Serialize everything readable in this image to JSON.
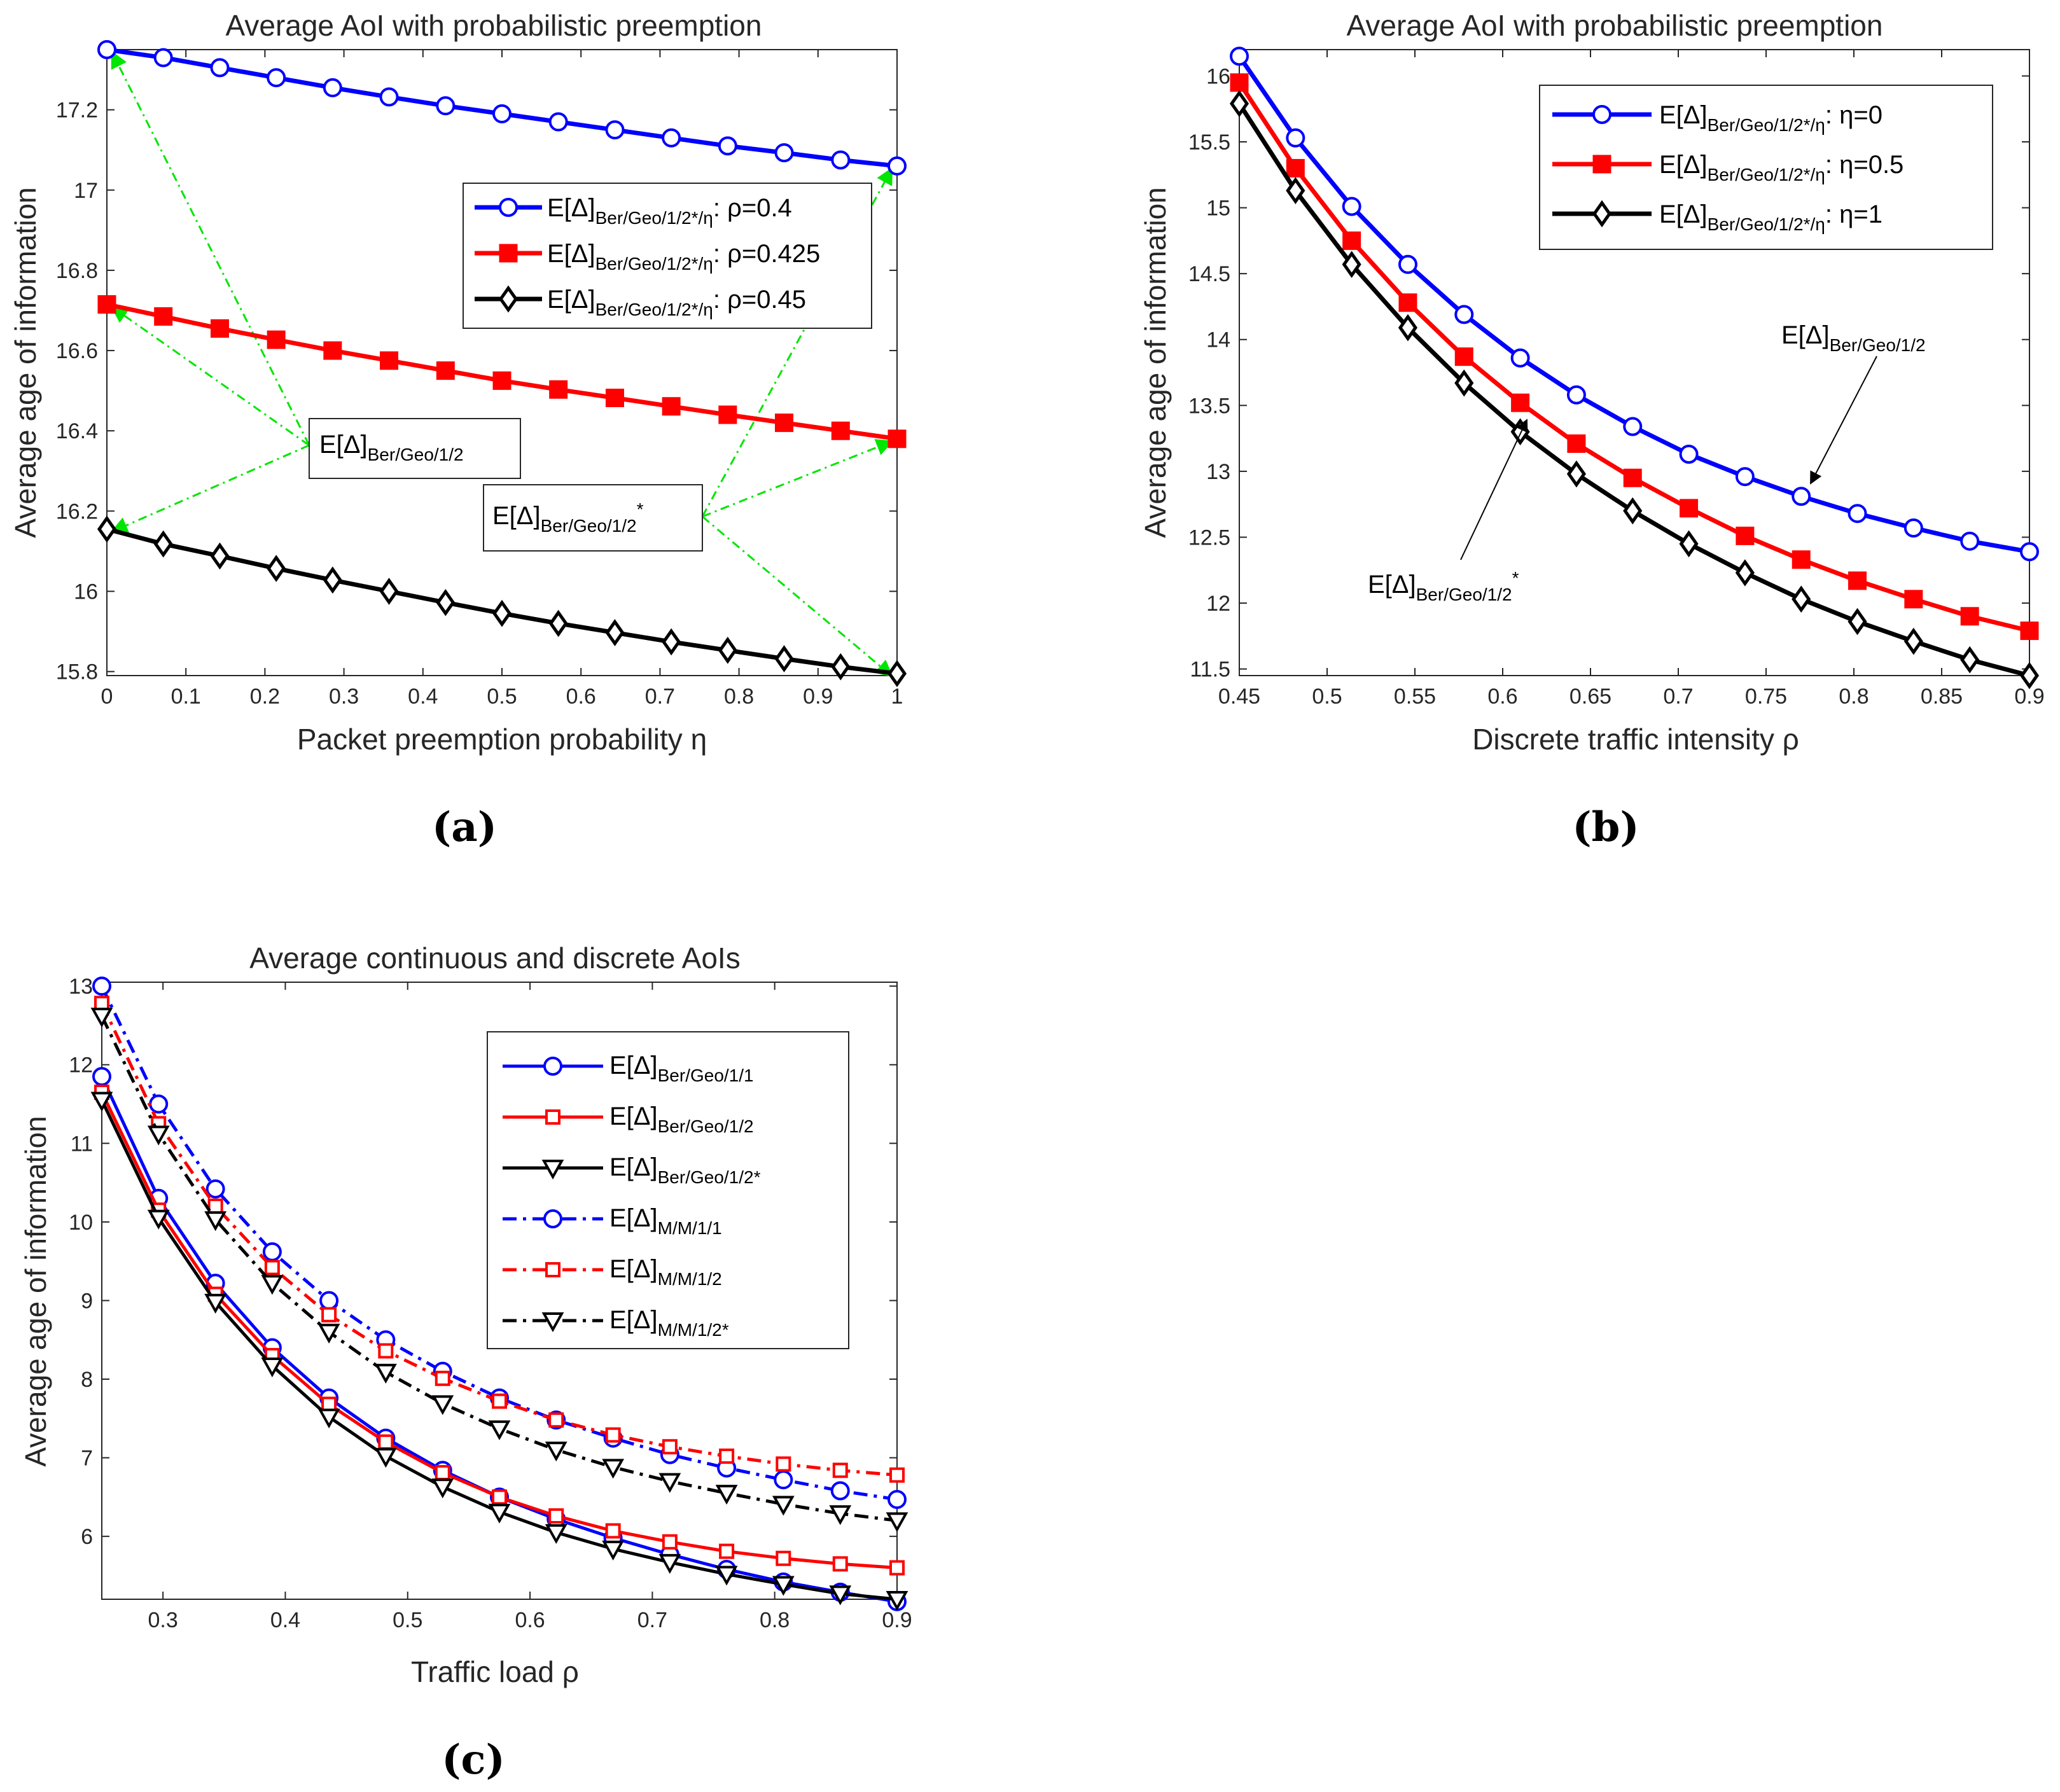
{
  "chart_data": [
    {
      "id": "a",
      "type": "line",
      "panel_label": "(a)",
      "title": "Average AoI with probabilistic preemption",
      "xlabel": "Packet preemption probability η",
      "ylabel": "Average age of information",
      "xlim": [
        0,
        1
      ],
      "ylim": [
        15.79,
        17.35
      ],
      "xticks": [
        0,
        0.1,
        0.2,
        0.3,
        0.4,
        0.5,
        0.6,
        0.7,
        0.8,
        0.9,
        1
      ],
      "xtick_labels": [
        "0",
        "0.1",
        "0.2",
        "0.3",
        "0.4",
        "0.5",
        "0.6",
        "0.7",
        "0.8",
        "0.9",
        "1"
      ],
      "yticks": [
        15.8,
        16,
        16.2,
        16.4,
        16.6,
        16.8,
        17,
        17.2
      ],
      "ytick_labels": [
        "15.8",
        "16",
        "16.2",
        "16.4",
        "16.6",
        "16.8",
        "17",
        "17.2"
      ],
      "legend_position": "upper-right",
      "x": [
        0,
        0.0714,
        0.1429,
        0.2143,
        0.2857,
        0.3571,
        0.4286,
        0.5,
        0.5714,
        0.6429,
        0.7143,
        0.7857,
        0.8571,
        0.9286,
        1
      ],
      "series": [
        {
          "name": "E[Δ]Ber/Geo/1/2*/η: ρ=0.4",
          "legend_main": "E[Δ]",
          "legend_sub": "Ber/Geo/1/2*/η",
          "legend_tail": ": ρ=0.4",
          "color": "#0000ff",
          "marker": "circle",
          "dash": "solid",
          "values": [
            17.35,
            17.33,
            17.305,
            17.28,
            17.255,
            17.232,
            17.21,
            17.19,
            17.17,
            17.15,
            17.13,
            17.11,
            17.093,
            17.075,
            17.06
          ]
        },
        {
          "name": "E[Δ]Ber/Geo/1/2*/η: ρ=0.425",
          "legend_main": "E[Δ]",
          "legend_sub": "Ber/Geo/1/2*/η",
          "legend_tail": ": ρ=0.425",
          "color": "#ff0000",
          "marker": "square",
          "dash": "solid",
          "values": [
            16.715,
            16.685,
            16.655,
            16.627,
            16.6,
            16.575,
            16.55,
            16.525,
            16.503,
            16.482,
            16.461,
            16.44,
            16.42,
            16.4,
            16.38
          ]
        },
        {
          "name": "E[Δ]Ber/Geo/1/2*/η: ρ=0.45",
          "legend_main": "E[Δ]",
          "legend_sub": "Ber/Geo/1/2*/η",
          "legend_tail": ": ρ=0.45",
          "color": "#000000",
          "marker": "diamond",
          "dash": "solid",
          "values": [
            16.155,
            16.118,
            16.088,
            16.057,
            16.028,
            16.0,
            15.972,
            15.945,
            15.92,
            15.897,
            15.874,
            15.853,
            15.832,
            15.812,
            15.795
          ]
        }
      ],
      "annotations": [
        {
          "id": "geo12",
          "main": "E[Δ]",
          "sub": "Ber/Geo/1/2",
          "sup": "",
          "box": true
        },
        {
          "id": "geo12star",
          "main": "E[Δ]",
          "sub": "Ber/Geo/1/2",
          "sup": "*",
          "box": true
        }
      ]
    },
    {
      "id": "b",
      "type": "line",
      "panel_label": "(b)",
      "title": "Average AoI with probabilistic preemption",
      "xlabel": "Discrete traffic intensity ρ",
      "ylabel": "Average age of information",
      "xlim": [
        0.45,
        0.9
      ],
      "ylim": [
        11.45,
        16.2
      ],
      "xticks": [
        0.45,
        0.5,
        0.55,
        0.6,
        0.65,
        0.7,
        0.75,
        0.8,
        0.85,
        0.9
      ],
      "xtick_labels": [
        "0.45",
        "0.5",
        "0.55",
        "0.6",
        "0.65",
        "0.7",
        "0.75",
        "0.8",
        "0.85",
        "0.9"
      ],
      "yticks": [
        11.5,
        12,
        12.5,
        13,
        13.5,
        14,
        14.5,
        15,
        15.5,
        16
      ],
      "ytick_labels": [
        "11.5",
        "12",
        "12.5",
        "13",
        "13.5",
        "14",
        "14.5",
        "15",
        "15.5",
        "16"
      ],
      "legend_position": "upper-right",
      "x": [
        0.45,
        0.482,
        0.514,
        0.546,
        0.578,
        0.61,
        0.642,
        0.674,
        0.706,
        0.738,
        0.77,
        0.802,
        0.834,
        0.866,
        0.9
      ],
      "series": [
        {
          "name": "E[Δ]Ber/Geo/1/2*/η: η=0",
          "legend_main": "E[Δ]",
          "legend_sub": "Ber/Geo/1/2*/η",
          "legend_tail": ": η=0",
          "color": "#0000ff",
          "marker": "circle",
          "dash": "solid",
          "values": [
            16.15,
            15.53,
            15.01,
            14.57,
            14.19,
            13.86,
            13.58,
            13.34,
            13.13,
            12.96,
            12.81,
            12.68,
            12.57,
            12.47,
            12.39
          ]
        },
        {
          "name": "E[Δ]Ber/Geo/1/2*/η: η=0.5",
          "legend_main": "E[Δ]",
          "legend_sub": "Ber/Geo/1/2*/η",
          "legend_tail": ": η=0.5",
          "color": "#ff0000",
          "marker": "square",
          "dash": "solid",
          "values": [
            15.95,
            15.3,
            14.75,
            14.28,
            13.87,
            13.52,
            13.21,
            12.95,
            12.72,
            12.51,
            12.33,
            12.17,
            12.03,
            11.9,
            11.79
          ]
        },
        {
          "name": "E[Δ]Ber/Geo/1/2*/η: η=1",
          "legend_main": "E[Δ]",
          "legend_sub": "Ber/Geo/1/2*/η",
          "legend_tail": ": η=1",
          "color": "#000000",
          "marker": "diamond",
          "dash": "solid",
          "values": [
            15.79,
            15.13,
            14.57,
            14.09,
            13.67,
            13.3,
            12.98,
            12.7,
            12.45,
            12.23,
            12.03,
            11.86,
            11.71,
            11.57,
            11.45
          ]
        }
      ],
      "annotations": [
        {
          "id": "geo12",
          "main": "E[Δ]",
          "sub": "Ber/Geo/1/2",
          "sup": "",
          "box": false
        },
        {
          "id": "geo12star",
          "main": "E[Δ]",
          "sub": "Ber/Geo/1/2",
          "sup": "*",
          "box": false
        }
      ]
    },
    {
      "id": "c",
      "type": "line",
      "panel_label": "(c)",
      "title": "Average continuous and discrete AoIs",
      "xlabel": "Traffic load ρ",
      "ylabel": "Average age of information",
      "xlim": [
        0.25,
        0.9
      ],
      "ylim": [
        5.2,
        13.05
      ],
      "xticks": [
        0.3,
        0.4,
        0.5,
        0.6,
        0.7,
        0.8,
        0.9
      ],
      "xtick_labels": [
        "0.3",
        "0.4",
        "0.5",
        "0.6",
        "0.7",
        "0.8",
        "0.9"
      ],
      "yticks": [
        6,
        7,
        8,
        9,
        10,
        11,
        12,
        13
      ],
      "ytick_labels": [
        "6",
        "7",
        "8",
        "9",
        "10",
        "11",
        "12",
        "13"
      ],
      "legend_position": "upper-right",
      "x": [
        0.25,
        0.2964,
        0.3429,
        0.3893,
        0.4357,
        0.4821,
        0.5286,
        0.575,
        0.6214,
        0.6679,
        0.7143,
        0.7607,
        0.8071,
        0.8536,
        0.9
      ],
      "series": [
        {
          "name": "E[Δ]Ber/Geo/1/1",
          "legend_main": "E[Δ]",
          "legend_sub": "Ber/Geo/1/1",
          "legend_tail": "",
          "color": "#0000ff",
          "marker": "circle",
          "dash": "solid",
          "values": [
            11.85,
            10.3,
            9.22,
            8.4,
            7.76,
            7.25,
            6.84,
            6.5,
            6.22,
            5.98,
            5.77,
            5.58,
            5.42,
            5.29,
            5.17
          ]
        },
        {
          "name": "E[Δ]Ber/Geo/1/2",
          "legend_main": "E[Δ]",
          "legend_sub": "Ber/Geo/1/2",
          "legend_tail": "",
          "color": "#ff0000",
          "marker": "square-open",
          "dash": "solid",
          "values": [
            11.65,
            10.15,
            9.08,
            8.3,
            7.68,
            7.2,
            6.81,
            6.5,
            6.26,
            6.07,
            5.93,
            5.81,
            5.72,
            5.65,
            5.6
          ]
        },
        {
          "name": "E[Δ]Ber/Geo/1/2*",
          "legend_main": "E[Δ]",
          "legend_sub": "Ber/Geo/1/2*",
          "legend_tail": "",
          "color": "#000000",
          "marker": "triangle-down",
          "dash": "solid",
          "values": [
            11.55,
            10.05,
            8.98,
            8.17,
            7.52,
            7.02,
            6.63,
            6.31,
            6.05,
            5.84,
            5.67,
            5.52,
            5.39,
            5.27,
            5.2
          ]
        },
        {
          "name": "E[Δ]M/M/1/1",
          "legend_main": "E[Δ]",
          "legend_sub": "M/M/1/1",
          "legend_tail": "",
          "color": "#0000ff",
          "marker": "circle",
          "dash": "dashdot",
          "values": [
            13.0,
            11.5,
            10.42,
            9.62,
            9.0,
            8.5,
            8.1,
            7.76,
            7.48,
            7.25,
            7.04,
            6.87,
            6.72,
            6.58,
            6.47
          ]
        },
        {
          "name": "E[Δ]M/M/1/2",
          "legend_main": "E[Δ]",
          "legend_sub": "M/M/1/2",
          "legend_tail": "",
          "color": "#ff0000",
          "marker": "square-open",
          "dash": "dashdot",
          "values": [
            12.78,
            11.25,
            10.2,
            9.42,
            8.82,
            8.36,
            8.01,
            7.72,
            7.48,
            7.29,
            7.14,
            7.02,
            6.92,
            6.84,
            6.78
          ]
        },
        {
          "name": "E[Δ]M/M/1/2*",
          "legend_main": "E[Δ]",
          "legend_sub": "M/M/1/2*",
          "legend_tail": "",
          "color": "#000000",
          "marker": "triangle-down",
          "dash": "dashdot",
          "values": [
            12.62,
            11.12,
            10.03,
            9.22,
            8.6,
            8.09,
            7.69,
            7.37,
            7.1,
            6.88,
            6.7,
            6.55,
            6.41,
            6.29,
            6.2
          ]
        }
      ],
      "annotations": []
    }
  ]
}
